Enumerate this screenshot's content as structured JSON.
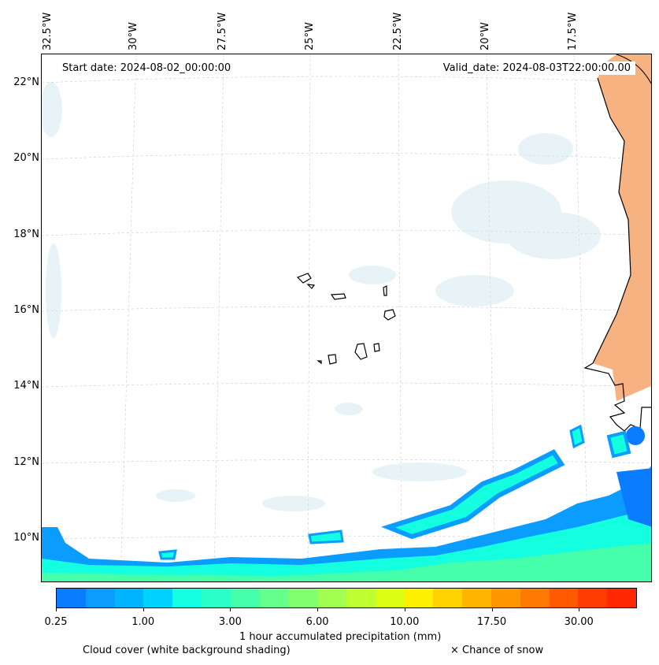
{
  "map": {
    "start_date": "Start date: 2024-08-02_00:00:00",
    "valid_date": "Valid_date: 2024-08-03T22:00:00.00",
    "longitude_labels": [
      "32.5°W",
      "30°W",
      "27.5°W",
      "25°W",
      "22.5°W",
      "20°W",
      "17.5°W"
    ],
    "latitude_labels": [
      "22°N",
      "20°N",
      "18°N",
      "16°N",
      "14°N",
      "12°N",
      "10°N"
    ],
    "colors": {
      "land_heat": "#f4a46a",
      "cloud_shading": "#d6eaf2",
      "coastline": "#000000",
      "gridline": "#c8c8c8"
    }
  },
  "colorbar": {
    "tick_labels": [
      "0.25",
      "1.00",
      "3.00",
      "6.00",
      "10.00",
      "17.50",
      "30.00"
    ],
    "colors": [
      "#0a7cff",
      "#0a9cff",
      "#00b4ff",
      "#00d2ff",
      "#14ffe0",
      "#2affc8",
      "#46ffaa",
      "#64ff8c",
      "#82ff6e",
      "#a0ff50",
      "#beff32",
      "#dcff14",
      "#fff000",
      "#ffd200",
      "#ffb400",
      "#ff9600",
      "#ff7800",
      "#ff5a00",
      "#ff3c00",
      "#ff2800"
    ],
    "label": "1 hour accumulated precipitation (mm)"
  },
  "legend": {
    "cloud_cover": "Cloud cover (white background shading)",
    "snow": "× Chance of snow"
  }
}
